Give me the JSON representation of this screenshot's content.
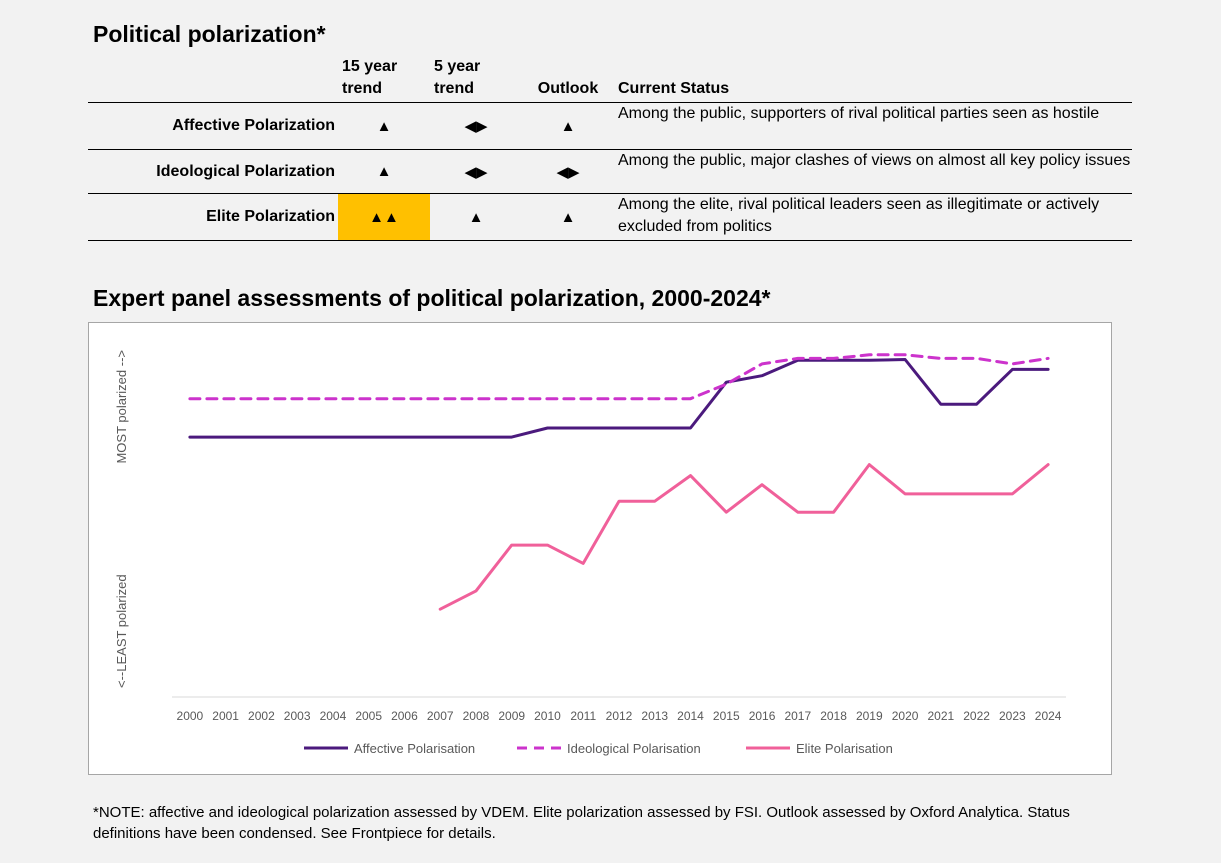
{
  "header": {
    "title": "Political polarization*"
  },
  "table": {
    "columns": [
      "",
      "15 year trend",
      "5 year trend",
      "Outlook",
      "Current Status"
    ],
    "col_lines": [
      [
        "",
        ""
      ],
      [
        "15 year",
        "trend"
      ],
      [
        "5 year",
        "trend"
      ],
      [
        "",
        "Outlook"
      ],
      [
        "",
        "Current Status"
      ]
    ],
    "rows": [
      {
        "label": "Affective Polarization",
        "trend15": "▲",
        "trend5": "◀▶",
        "outlook": "▲",
        "status": "Among the public, supporters of rival political parties seen as hostile"
      },
      {
        "label": "Ideological Polarization",
        "trend15": "▲",
        "trend5": "◀▶",
        "outlook": "◀▶",
        "status": "Among the public, major clashes of views on almost all key policy issues"
      },
      {
        "label": "Elite Polarization",
        "trend15": "▲▲",
        "trend5": "▲",
        "outlook": "▲",
        "status": "Among the elite, rival political leaders seen as illegitimate or actively excluded from politics"
      }
    ],
    "highlight_color": "#ffc000"
  },
  "chart_title": "Expert panel assessments of political polarization, 2000-2024*",
  "chart_data": {
    "type": "line",
    "x": [
      2000,
      2001,
      2002,
      2003,
      2004,
      2005,
      2006,
      2007,
      2008,
      2009,
      2010,
      2011,
      2012,
      2013,
      2014,
      2015,
      2016,
      2017,
      2018,
      2019,
      2020,
      2021,
      2022,
      2023,
      2024
    ],
    "x_tick_labels": [
      "2000",
      "2001",
      "2002",
      "2003",
      "2004",
      "2005",
      "2006",
      "2007",
      "2008",
      "2009",
      "2010",
      "2011",
      "2012",
      "2013",
      "2014",
      "2015",
      "2016",
      "2017",
      "2018",
      "2019",
      "2020",
      "2021",
      "2022",
      "2023",
      "2024"
    ],
    "ylim": [
      0,
      1
    ],
    "ylabel_top": "MOST polarized -->",
    "ylabel_bottom": "<--LEAST polarized",
    "y_ticks_shown": false,
    "grid": false,
    "legend_position": "bottom",
    "series": [
      {
        "name": "Affective Polarisation",
        "color": "#4b1a7d",
        "dash": "solid",
        "values": [
          0.71,
          0.71,
          0.71,
          0.71,
          0.71,
          0.71,
          0.71,
          0.71,
          0.71,
          0.71,
          0.735,
          0.735,
          0.735,
          0.735,
          0.735,
          0.86,
          0.878,
          0.92,
          0.92,
          0.92,
          0.922,
          0.8,
          0.8,
          0.895,
          0.895
        ]
      },
      {
        "name": "Ideological Polarisation",
        "color": "#cc33cc",
        "dash": "dashed",
        "values": [
          0.815,
          0.815,
          0.815,
          0.815,
          0.815,
          0.815,
          0.815,
          0.815,
          0.815,
          0.815,
          0.815,
          0.815,
          0.815,
          0.815,
          0.815,
          0.855,
          0.91,
          0.925,
          0.925,
          0.935,
          0.935,
          0.925,
          0.925,
          0.91,
          0.925
        ]
      },
      {
        "name": "Elite Polarisation",
        "color": "#f0609a",
        "dash": "solid",
        "values": [
          null,
          null,
          null,
          null,
          null,
          null,
          null,
          0.24,
          0.29,
          0.415,
          0.415,
          0.365,
          0.535,
          0.535,
          0.605,
          0.505,
          0.58,
          0.505,
          0.505,
          0.635,
          0.555,
          0.555,
          0.555,
          0.555,
          0.635
        ]
      }
    ]
  },
  "footnote": "*NOTE: affective and ideological polarization assessed by VDEM. Elite polarization assessed by FSI. Outlook assessed by Oxford Analytica. Status definitions have been condensed. See Frontpiece for details."
}
